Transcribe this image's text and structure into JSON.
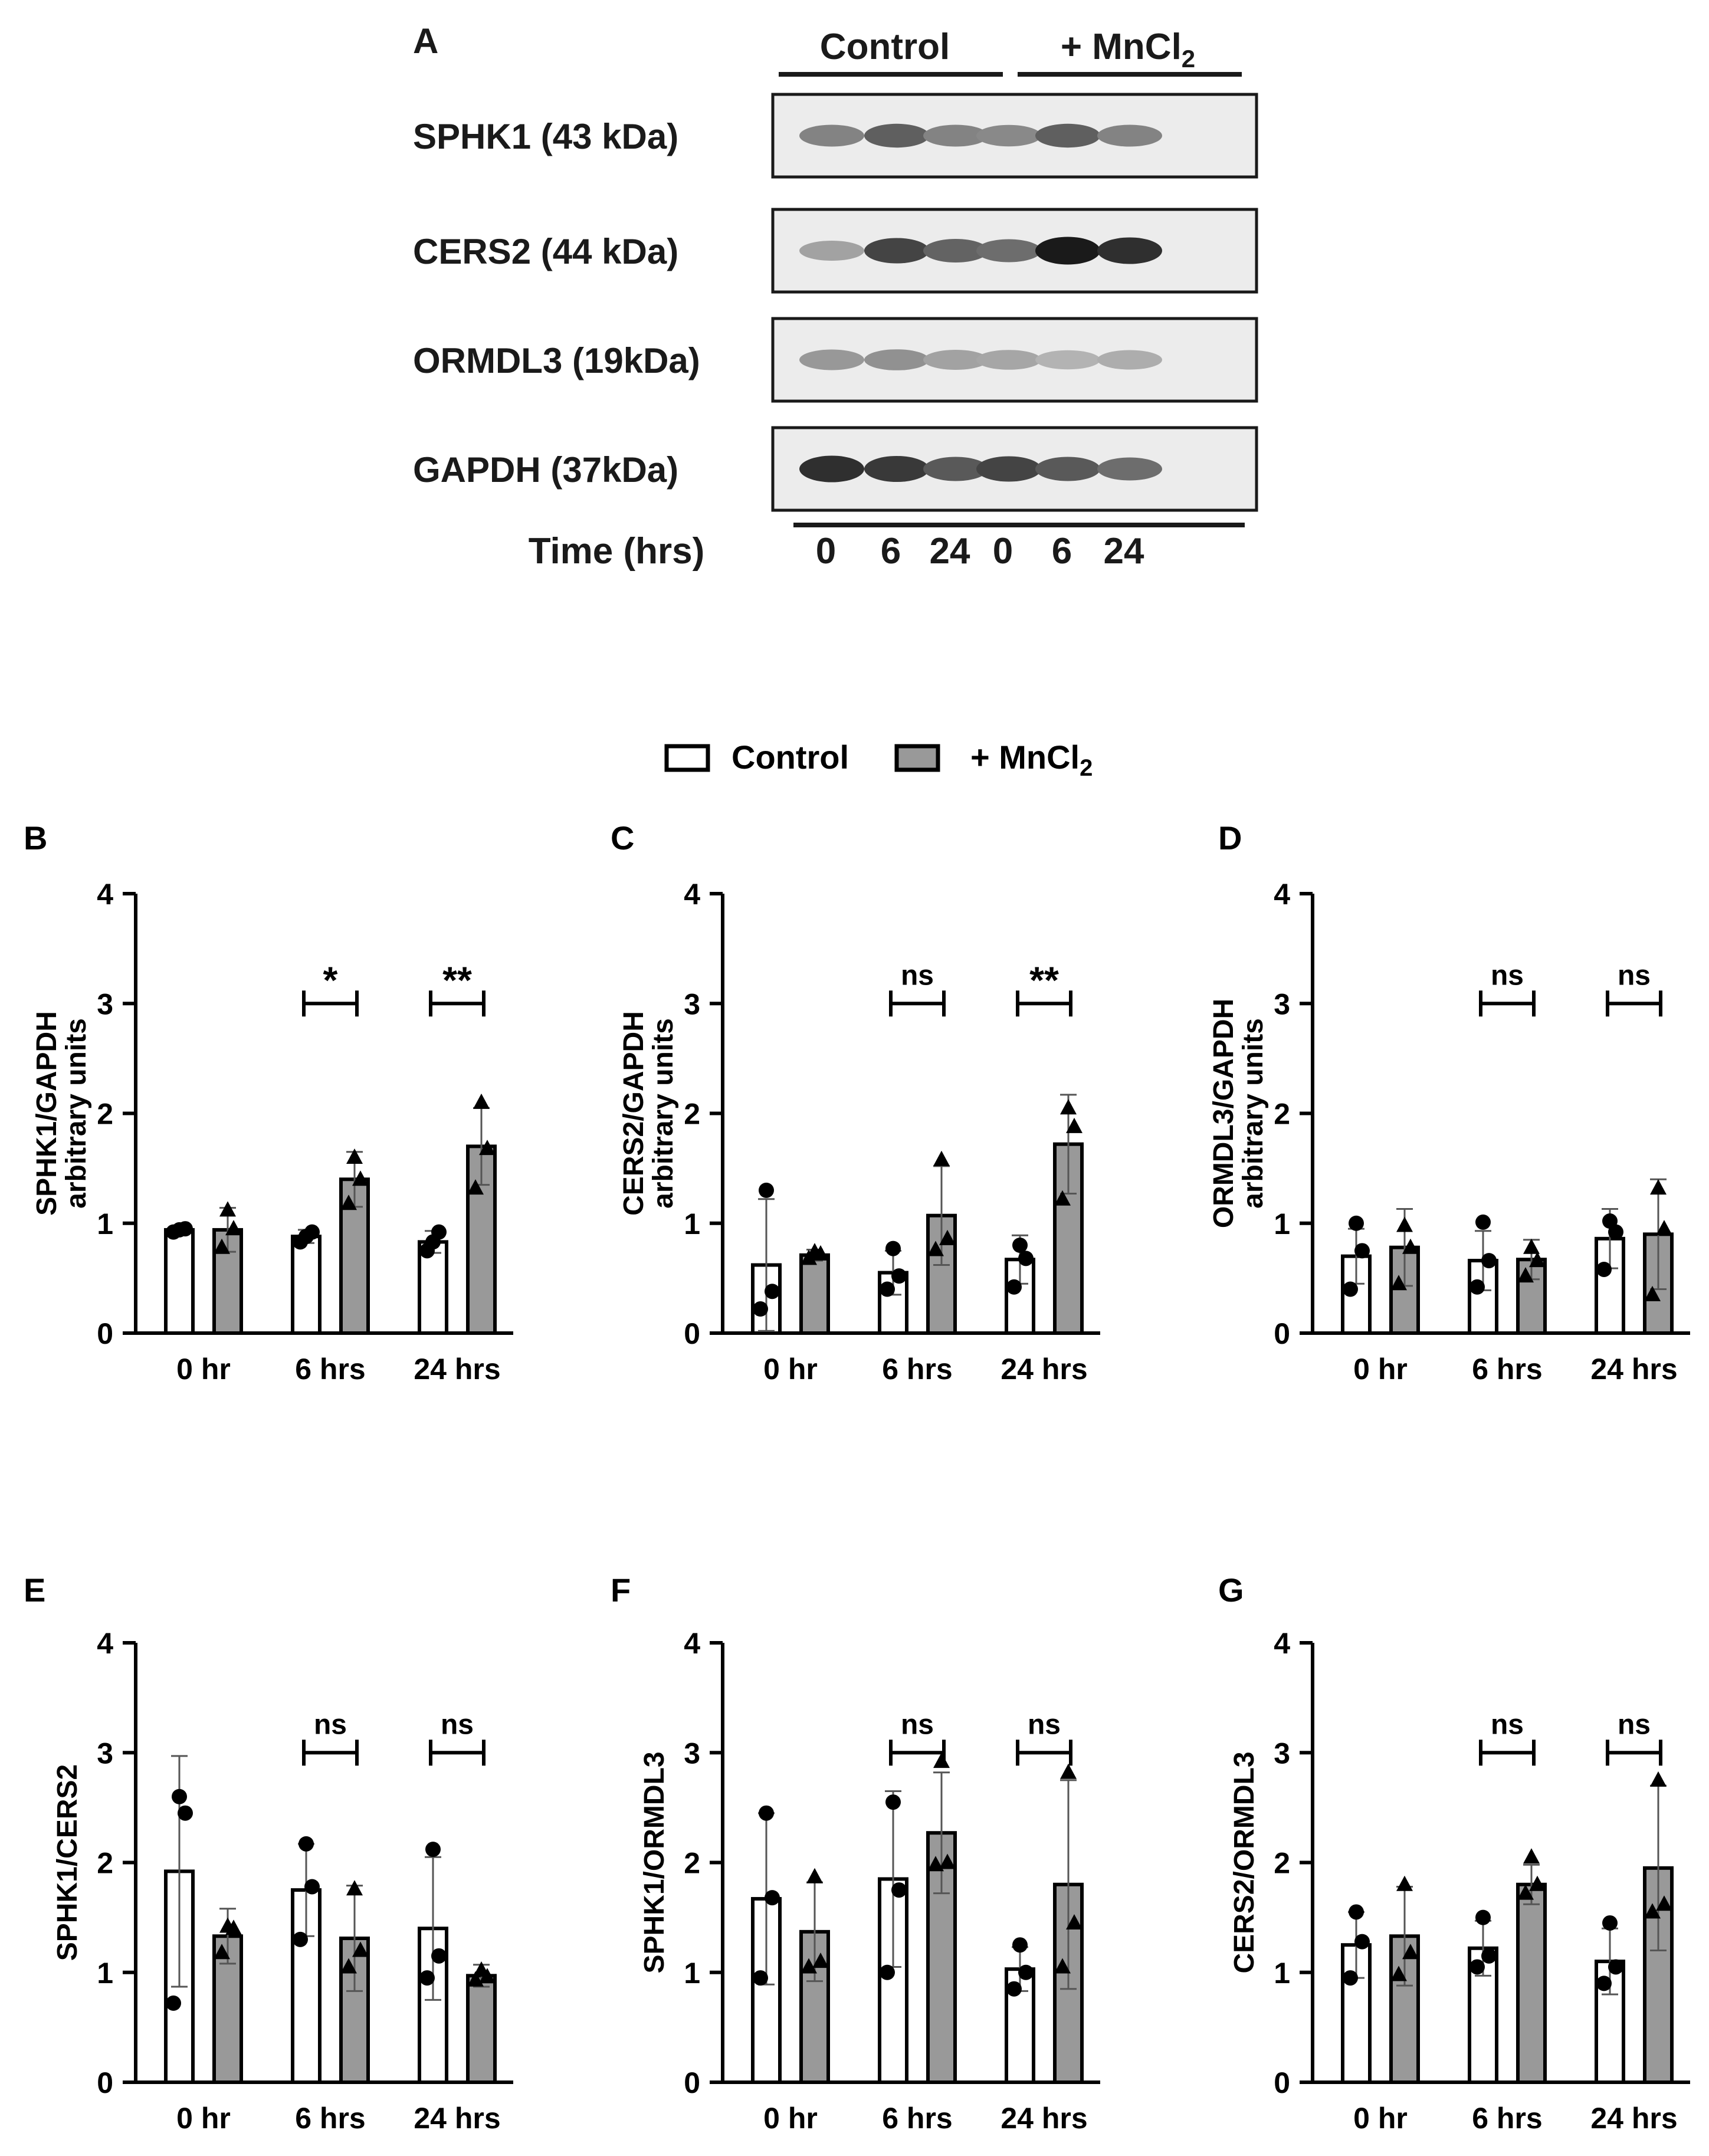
{
  "panel_a": {
    "letter": "A",
    "groups": [
      "Control",
      "+ MnCl",
      "2"
    ],
    "proteins": [
      "SPHK1 (43 kDa)",
      "CERS2 (44 kDa)",
      "ORMDL3 (19kDa)",
      "GAPDH (37kDa)"
    ],
    "time_label": "Time (hrs)",
    "lanes": [
      "0",
      "6",
      "24",
      "0",
      "6",
      "24"
    ],
    "band_intensity": [
      [
        0.45,
        0.62,
        0.45,
        0.42,
        0.62,
        0.45
      ],
      [
        0.3,
        0.75,
        0.6,
        0.55,
        0.95,
        0.85
      ],
      [
        0.35,
        0.38,
        0.3,
        0.28,
        0.22,
        0.25
      ],
      [
        0.85,
        0.8,
        0.65,
        0.75,
        0.65,
        0.55
      ]
    ]
  },
  "legend": {
    "control": "Control",
    "mncl": "+ MnCl",
    "mncl_sub": "2",
    "control_color": "#ffffff",
    "mncl_color": "#999999"
  },
  "chart_data": [
    {
      "panel": "B",
      "type": "bar",
      "ylabel_line1": "SPHK1/GAPDH",
      "ylabel_line2": "arbitrary units",
      "categories": [
        "0 hr",
        "6 hrs",
        "24 hrs"
      ],
      "ylim": [
        0,
        4
      ],
      "yticks": [
        "0",
        "1",
        "2",
        "3",
        "4"
      ],
      "series": [
        {
          "name": "Control",
          "values": [
            0.94,
            0.88,
            0.83
          ],
          "sd": [
            0.03,
            0.06,
            0.1
          ],
          "points": [
            [
              0.92,
              0.95,
              0.94
            ],
            [
              0.83,
              0.92,
              0.88
            ],
            [
              0.75,
              0.92,
              0.83
            ]
          ]
        },
        {
          "name": "+ MnCl2",
          "values": [
            0.94,
            1.4,
            1.7
          ],
          "sd": [
            0.2,
            0.25,
            0.35
          ],
          "points": [
            [
              0.78,
              0.95,
              1.12
            ],
            [
              1.18,
              1.4,
              1.6
            ],
            [
              1.32,
              1.68,
              2.1
            ]
          ]
        }
      ],
      "significance": [
        "",
        "*",
        "**"
      ]
    },
    {
      "panel": "C",
      "type": "bar",
      "ylabel_line1": "CERS2/GAPDH",
      "ylabel_line2": "arbitrary units",
      "categories": [
        "0 hr",
        "6 hrs",
        "24 hrs"
      ],
      "ylim": [
        0,
        4
      ],
      "yticks": [
        "0",
        "1",
        "2",
        "3",
        "4"
      ],
      "series": [
        {
          "name": "Control",
          "values": [
            0.62,
            0.55,
            0.67
          ],
          "sd": [
            0.6,
            0.2,
            0.22
          ],
          "points": [
            [
              0.22,
              0.38,
              1.3
            ],
            [
              0.4,
              0.52,
              0.77
            ],
            [
              0.42,
              0.68,
              0.8
            ]
          ]
        },
        {
          "name": "+ MnCl2",
          "values": [
            0.71,
            1.07,
            1.72
          ],
          "sd": [
            0.05,
            0.45,
            0.45
          ],
          "points": [
            [
              0.68,
              0.72,
              0.74
            ],
            [
              0.76,
              0.86,
              1.58
            ],
            [
              1.22,
              1.88,
              2.05
            ]
          ]
        }
      ],
      "significance": [
        "",
        "ns",
        "**"
      ]
    },
    {
      "panel": "D",
      "type": "bar",
      "ylabel_line1": "ORMDL3/GAPDH",
      "ylabel_line2": "arbitrary units",
      "categories": [
        "0 hr",
        "6 hrs",
        "24 hrs"
      ],
      "ylim": [
        0,
        4
      ],
      "yticks": [
        "0",
        "1",
        "2",
        "3",
        "4"
      ],
      "series": [
        {
          "name": "Control",
          "values": [
            0.7,
            0.66,
            0.86
          ],
          "sd": [
            0.25,
            0.27,
            0.27
          ],
          "points": [
            [
              0.4,
              0.75,
              1.0
            ],
            [
              0.42,
              0.66,
              1.01
            ],
            [
              0.58,
              0.92,
              1.02
            ]
          ]
        },
        {
          "name": "+ MnCl2",
          "values": [
            0.78,
            0.67,
            0.9
          ],
          "sd": [
            0.35,
            0.18,
            0.5
          ],
          "points": [
            [
              0.45,
              0.78,
              0.98
            ],
            [
              0.52,
              0.66,
              0.78
            ],
            [
              0.35,
              0.95,
              1.32
            ]
          ]
        }
      ],
      "significance": [
        "",
        "ns",
        "ns"
      ]
    },
    {
      "panel": "E",
      "type": "bar",
      "ylabel_line1": "SPHK1/CERS2",
      "ylabel_line2": "",
      "categories": [
        "0 hr",
        "6 hrs",
        "24 hrs"
      ],
      "ylim": [
        0,
        4
      ],
      "yticks": [
        "0",
        "1",
        "2",
        "3",
        "4"
      ],
      "series": [
        {
          "name": "Control",
          "values": [
            1.92,
            1.75,
            1.4
          ],
          "sd": [
            1.05,
            0.42,
            0.65
          ],
          "points": [
            [
              0.72,
              2.45,
              2.6
            ],
            [
              1.3,
              1.78,
              2.17
            ],
            [
              0.95,
              1.15,
              2.12
            ]
          ]
        },
        {
          "name": "+ MnCl2",
          "values": [
            1.33,
            1.31,
            0.97
          ],
          "sd": [
            0.25,
            0.48,
            0.1
          ],
          "points": [
            [
              1.18,
              1.4,
              1.42
            ],
            [
              1.05,
              1.2,
              1.76
            ],
            [
              0.93,
              0.96,
              1.02
            ]
          ]
        }
      ],
      "significance": [
        "",
        "ns",
        "ns"
      ]
    },
    {
      "panel": "F",
      "type": "bar",
      "ylabel_line1": "SPHK1/ORMDL3",
      "ylabel_line2": "",
      "categories": [
        "0 hr",
        "6 hrs",
        "24 hrs"
      ],
      "ylim": [
        0,
        4
      ],
      "yticks": [
        "0",
        "1",
        "2",
        "3",
        "4"
      ],
      "series": [
        {
          "name": "Control",
          "values": [
            1.67,
            1.85,
            1.03
          ],
          "sd": [
            0.78,
            0.8,
            0.2
          ],
          "points": [
            [
              0.95,
              1.68,
              2.45
            ],
            [
              1.0,
              1.75,
              2.55
            ],
            [
              0.85,
              1.0,
              1.25
            ]
          ]
        },
        {
          "name": "+ MnCl2",
          "values": [
            1.37,
            2.27,
            1.8
          ],
          "sd": [
            0.45,
            0.55,
            0.95
          ],
          "points": [
            [
              1.05,
              1.1,
              1.87
            ],
            [
              1.98,
              2.0,
              2.92
            ],
            [
              1.05,
              1.45,
              2.82
            ]
          ]
        }
      ],
      "significance": [
        "",
        "ns",
        "ns"
      ]
    },
    {
      "panel": "G",
      "type": "bar",
      "ylabel_line1": "CERS2/ORMDL3",
      "ylabel_line2": "",
      "categories": [
        "0 hr",
        "6 hrs",
        "24 hrs"
      ],
      "ylim": [
        0,
        4
      ],
      "yticks": [
        "0",
        "1",
        "2",
        "3",
        "4"
      ],
      "series": [
        {
          "name": "Control",
          "values": [
            1.25,
            1.22,
            1.1
          ],
          "sd": [
            0.3,
            0.25,
            0.3
          ],
          "points": [
            [
              0.95,
              1.28,
              1.55
            ],
            [
              1.05,
              1.15,
              1.5
            ],
            [
              0.9,
              1.05,
              1.45
            ]
          ]
        },
        {
          "name": "+ MnCl2",
          "values": [
            1.33,
            1.8,
            1.95
          ],
          "sd": [
            0.45,
            0.18,
            0.75
          ],
          "points": [
            [
              0.98,
              1.18,
              1.8
            ],
            [
              1.72,
              1.8,
              2.05
            ],
            [
              1.55,
              1.62,
              2.75
            ]
          ]
        }
      ],
      "significance": [
        "",
        "ns",
        "ns"
      ]
    }
  ]
}
